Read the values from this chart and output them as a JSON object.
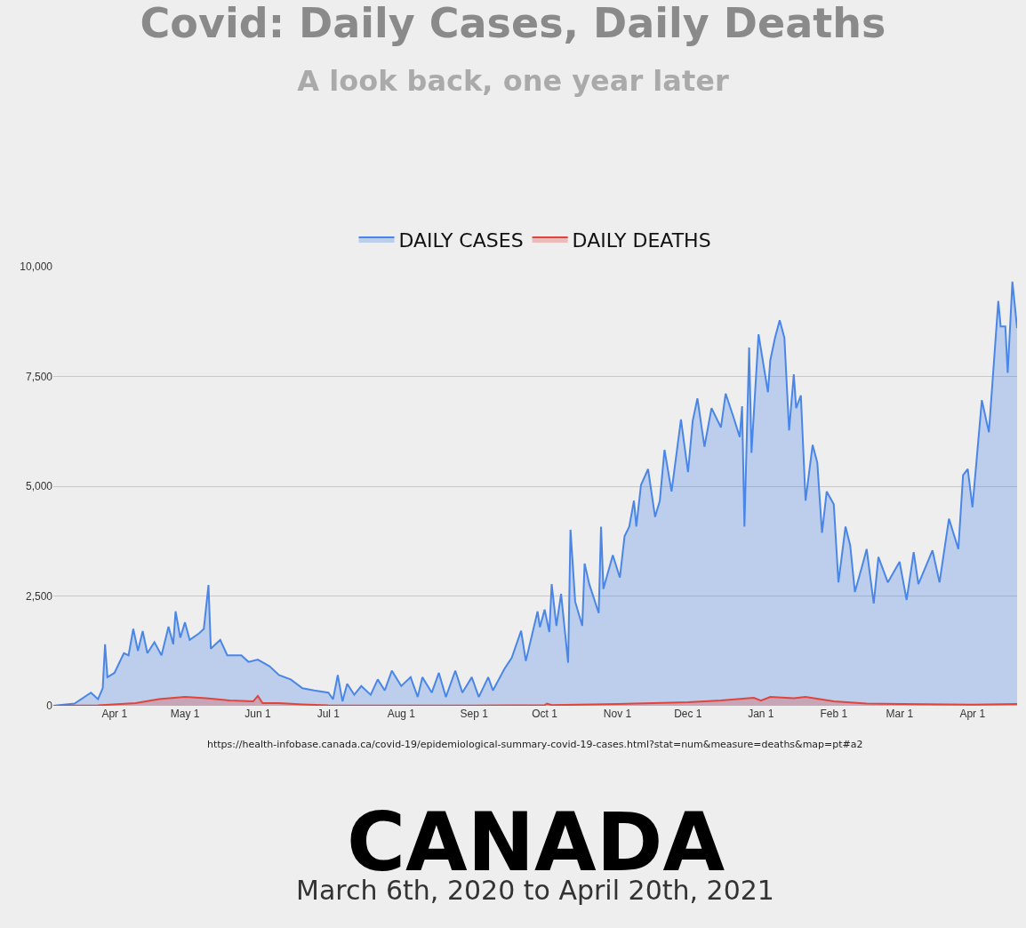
{
  "chart_data": {
    "type": "area",
    "title": "Covid: Daily Cases, Daily Deaths",
    "subtitle": "A look back, one year later",
    "annotations": [
      "https://health-infobase.canada.ca/covid-19/epidemiological-summary-covid-19-cases.html?stat=num&measure=deaths&map=pt#a2",
      "CANADA",
      "March 6th, 2020 to April 20th, 2021"
    ],
    "xlim": [
      "2020-03-06",
      "2021-04-20"
    ],
    "xticks": [
      {
        "value": "2020-04-01",
        "label": "Apr 1"
      },
      {
        "value": "2020-05-01",
        "label": "May 1"
      },
      {
        "value": "2020-06-01",
        "label": "Jun 1"
      },
      {
        "value": "2020-07-01",
        "label": "Jul 1"
      },
      {
        "value": "2020-08-01",
        "label": "Aug 1"
      },
      {
        "value": "2020-09-01",
        "label": "Sep 1"
      },
      {
        "value": "2020-10-01",
        "label": "Oct 1"
      },
      {
        "value": "2020-11-01",
        "label": "Nov 1"
      },
      {
        "value": "2020-12-01",
        "label": "Dec 1"
      },
      {
        "value": "2021-01-01",
        "label": "Jan 1"
      },
      {
        "value": "2021-02-01",
        "label": "Feb 1"
      },
      {
        "value": "2021-03-01",
        "label": "Mar 1"
      },
      {
        "value": "2021-04-01",
        "label": "Apr 1"
      }
    ],
    "ylim": [
      0,
      10000
    ],
    "yticks": [
      {
        "value": 0,
        "label": "0"
      },
      {
        "value": 2500,
        "label": "2,500"
      },
      {
        "value": 5000,
        "label": "5,000"
      },
      {
        "value": 7500,
        "label": "7,500"
      },
      {
        "value": 10000,
        "label": "10,000"
      }
    ],
    "grid": "y",
    "legend": "top",
    "series": [
      {
        "name": "DAILY CASES",
        "color": "#4a86e8",
        "x": [
          "2020-03-06",
          "2020-03-15",
          "2020-03-22",
          "2020-03-25",
          "2020-03-27",
          "2020-03-28",
          "2020-03-29",
          "2020-04-01",
          "2020-04-05",
          "2020-04-07",
          "2020-04-09",
          "2020-04-11",
          "2020-04-13",
          "2020-04-15",
          "2020-04-18",
          "2020-04-21",
          "2020-04-24",
          "2020-04-26",
          "2020-04-27",
          "2020-04-29",
          "2020-05-01",
          "2020-05-03",
          "2020-05-07",
          "2020-05-09",
          "2020-05-11",
          "2020-05-12",
          "2020-05-14",
          "2020-05-16",
          "2020-05-19",
          "2020-05-25",
          "2020-05-28",
          "2020-06-01",
          "2020-06-06",
          "2020-06-10",
          "2020-06-15",
          "2020-06-20",
          "2020-06-25",
          "2020-07-01",
          "2020-07-03",
          "2020-07-05",
          "2020-07-07",
          "2020-07-09",
          "2020-07-12",
          "2020-07-15",
          "2020-07-19",
          "2020-07-22",
          "2020-07-25",
          "2020-07-28",
          "2020-08-01",
          "2020-08-05",
          "2020-08-08",
          "2020-08-10",
          "2020-08-14",
          "2020-08-17",
          "2020-08-20",
          "2020-08-24",
          "2020-08-27",
          "2020-08-31",
          "2020-09-03",
          "2020-09-07",
          "2020-09-09",
          "2020-09-14",
          "2020-09-17",
          "2020-09-21",
          "2020-09-23",
          "2020-09-28",
          "2020-09-29",
          "2020-10-01",
          "2020-10-03",
          "2020-10-04",
          "2020-10-06",
          "2020-10-08",
          "2020-10-11",
          "2020-10-12",
          "2020-10-14",
          "2020-10-17",
          "2020-10-18",
          "2020-10-20",
          "2020-10-24",
          "2020-10-25",
          "2020-10-26",
          "2020-10-30",
          "2020-11-02",
          "2020-11-04",
          "2020-11-06",
          "2020-11-08",
          "2020-11-09",
          "2020-11-11",
          "2020-11-14",
          "2020-11-17",
          "2020-11-19",
          "2020-11-21",
          "2020-11-24",
          "2020-11-28",
          "2020-12-01",
          "2020-12-03",
          "2020-12-05",
          "2020-12-08",
          "2020-12-11",
          "2020-12-15",
          "2020-12-17",
          "2020-12-20",
          "2020-12-23",
          "2020-12-24",
          "2020-12-25",
          "2020-12-27",
          "2020-12-28",
          "2020-12-31",
          "2021-01-04",
          "2021-01-05",
          "2021-01-07",
          "2021-01-09",
          "2021-01-11",
          "2021-01-13",
          "2021-01-15",
          "2021-01-16",
          "2021-01-18",
          "2021-01-20",
          "2021-01-23",
          "2021-01-25",
          "2021-01-27",
          "2021-01-29",
          "2021-02-01",
          "2021-02-03",
          "2021-02-06",
          "2021-02-08",
          "2021-02-10",
          "2021-02-13",
          "2021-02-15",
          "2021-02-18",
          "2021-02-20",
          "2021-02-24",
          "2021-03-01",
          "2021-03-04",
          "2021-03-07",
          "2021-03-09",
          "2021-03-13",
          "2021-03-15",
          "2021-03-18",
          "2021-03-22",
          "2021-03-26",
          "2021-03-28",
          "2021-03-30",
          "2021-04-01",
          "2021-04-05",
          "2021-04-08",
          "2021-04-12",
          "2021-04-13",
          "2021-04-15",
          "2021-04-16",
          "2021-04-18",
          "2021-04-20"
        ],
        "values": [
          0,
          50,
          300,
          150,
          400,
          1400,
          650,
          750,
          1200,
          1150,
          1750,
          1250,
          1700,
          1200,
          1450,
          1150,
          1800,
          1400,
          2150,
          1550,
          1900,
          1500,
          1650,
          1750,
          2750,
          1300,
          1400,
          1500,
          1150,
          1150,
          1000,
          1050,
          900,
          700,
          600,
          400,
          350,
          300,
          150,
          700,
          100,
          500,
          250,
          450,
          250,
          600,
          350,
          800,
          450,
          650,
          200,
          650,
          300,
          750,
          200,
          800,
          300,
          650,
          200,
          650,
          350,
          850,
          1090,
          1710,
          1020,
          2150,
          1790,
          2190,
          1680,
          2770,
          1820,
          2550,
          980,
          4010,
          2370,
          1820,
          3240,
          2770,
          2110,
          4080,
          2660,
          3430,
          2920,
          3860,
          4080,
          4670,
          4080,
          5030,
          5390,
          4300,
          4670,
          5830,
          4880,
          6520,
          5320,
          6490,
          7000,
          5900,
          6780,
          6340,
          7110,
          6630,
          6120,
          6820,
          4080,
          8160,
          5760,
          8460,
          7140,
          7870,
          8380,
          8780,
          8380,
          6270,
          7550,
          6780,
          7070,
          4670,
          5940,
          5540,
          3940,
          4880,
          4590,
          2810,
          4080,
          3650,
          2590,
          3170,
          3570,
          2330,
          3390,
          2810,
          3280,
          2410,
          3500,
          2770,
          3280,
          3540,
          2810,
          4260,
          3570,
          5250,
          5390,
          4520,
          6960,
          6230,
          9220,
          8640,
          8640,
          7580,
          9660,
          8600
        ]
      },
      {
        "name": "DAILY DEATHS",
        "color": "#e0453c",
        "x": [
          "2020-03-06",
          "2020-03-25",
          "2020-04-10",
          "2020-04-20",
          "2020-05-01",
          "2020-05-10",
          "2020-05-20",
          "2020-05-30",
          "2020-06-01",
          "2020-06-03",
          "2020-06-10",
          "2020-06-20",
          "2020-07-01",
          "2020-08-01",
          "2020-09-01",
          "2020-10-01",
          "2020-10-02",
          "2020-10-04",
          "2020-11-01",
          "2020-12-01",
          "2020-12-15",
          "2020-12-29",
          "2021-01-01",
          "2021-01-05",
          "2021-01-15",
          "2021-01-20",
          "2021-02-01",
          "2021-02-15",
          "2021-03-01",
          "2021-04-01",
          "2021-04-20"
        ],
        "values": [
          0,
          10,
          60,
          150,
          200,
          170,
          120,
          100,
          226,
          60,
          60,
          30,
          10,
          5,
          5,
          15,
          50,
          15,
          40,
          80,
          120,
          180,
          120,
          200,
          170,
          200,
          100,
          50,
          40,
          25,
          40
        ]
      }
    ]
  }
}
